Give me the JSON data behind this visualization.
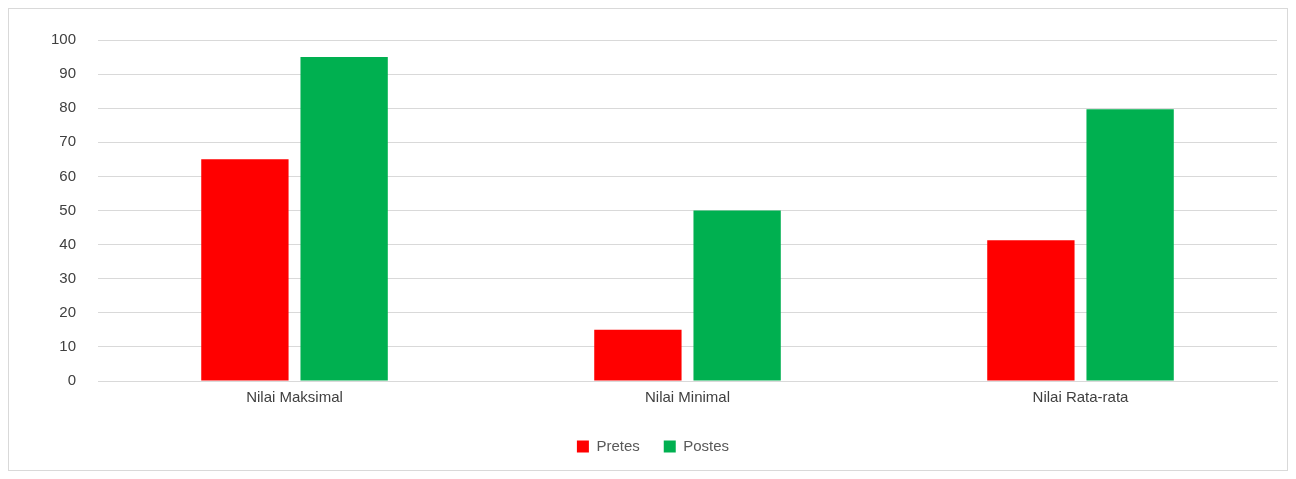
{
  "chart_data": {
    "type": "bar",
    "categories": [
      "Nilai Maksimal",
      "Nilai Minimal",
      "Nilai Rata-rata"
    ],
    "series": [
      {
        "name": "Pretes",
        "color": "#ff0000",
        "values": [
          65,
          15,
          41.3
        ]
      },
      {
        "name": "Postes",
        "color": "#00b050",
        "values": [
          95,
          50,
          79.7
        ]
      }
    ],
    "ylim": [
      0,
      100
    ],
    "yticks": [
      0,
      10,
      20,
      30,
      40,
      50,
      60,
      70,
      80,
      90,
      100
    ],
    "grid": "y",
    "legend": "bottom"
  }
}
